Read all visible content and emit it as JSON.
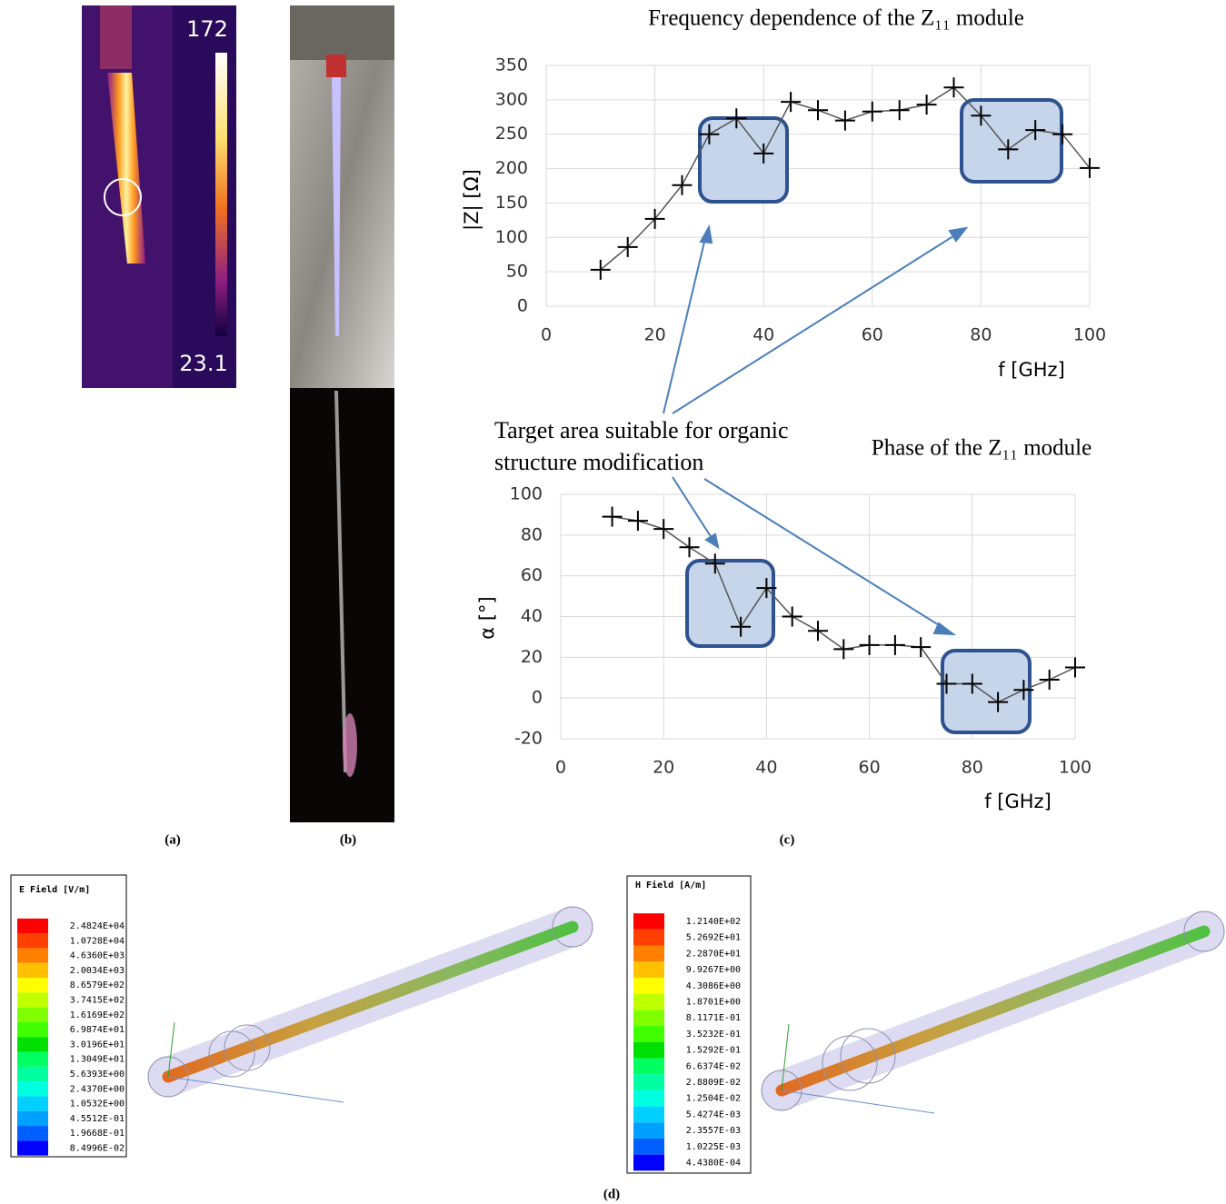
{
  "chart_data": [
    {
      "type": "line",
      "title": "Frequency dependence of the Z₁₁ module",
      "xlabel": "f  [GHz]",
      "ylabel": "|Z| [Ω]",
      "x": [
        10,
        15,
        20,
        25,
        30,
        35,
        40,
        45,
        50,
        55,
        60,
        65,
        70,
        75,
        80,
        85,
        90,
        95,
        100
      ],
      "values": [
        53,
        86,
        127,
        176,
        250,
        273,
        222,
        297,
        285,
        270,
        283,
        285,
        293,
        318,
        277,
        228,
        256,
        250,
        201
      ],
      "xlim": [
        0,
        100
      ],
      "ylim": [
        0,
        350
      ],
      "xticks": [
        0,
        20,
        40,
        60,
        80,
        100
      ],
      "yticks": [
        0,
        50,
        100,
        150,
        200,
        250,
        300,
        350
      ],
      "grid": true,
      "color": "#000000"
    },
    {
      "type": "line",
      "title": "Phase of the Z₁₁ module",
      "xlabel": "f  [GHz]",
      "ylabel": "α [°]",
      "x": [
        10,
        15,
        20,
        25,
        30,
        35,
        40,
        45,
        50,
        55,
        60,
        65,
        70,
        75,
        80,
        85,
        90,
        95,
        100
      ],
      "values": [
        89,
        87,
        83,
        74,
        66,
        35,
        54,
        40,
        33,
        24,
        26,
        26,
        25,
        7,
        7,
        -2,
        4,
        9,
        15
      ],
      "xlim": [
        0,
        100
      ],
      "ylim": [
        -20,
        100
      ],
      "xticks": [
        0,
        20,
        40,
        60,
        80,
        100
      ],
      "yticks": [
        -20,
        0,
        20,
        40,
        60,
        80,
        100
      ],
      "grid": true,
      "color": "#000000"
    }
  ],
  "annotation": [
    "Target area suitable for organic",
    "structure modification"
  ],
  "panels": [
    "(a)",
    "(b)",
    "(c)",
    "(d)"
  ],
  "thermal": {
    "max": "172",
    "min": "23.1"
  },
  "e_field": {
    "title": "E Field [V/m]",
    "levels": [
      "2.4824E+04",
      "1.0728E+04",
      "4.6360E+03",
      "2.0034E+03",
      "8.6579E+02",
      "3.7415E+02",
      "1.6169E+02",
      "6.9874E+01",
      "3.0196E+01",
      "1.3049E+01",
      "5.6393E+00",
      "2.4370E+00",
      "1.0532E+00",
      "4.5512E-01",
      "1.9668E-01",
      "8.4996E-02"
    ],
    "colors": [
      "#ff0000",
      "#ff4000",
      "#ff8000",
      "#ffc000",
      "#ffff00",
      "#c0ff00",
      "#80ff00",
      "#40ff00",
      "#00e000",
      "#00ff60",
      "#00ffa0",
      "#00ffe0",
      "#00d0ff",
      "#00a0ff",
      "#0060ff",
      "#0000ff"
    ]
  },
  "h_field": {
    "title": "H Field [A/m]",
    "levels": [
      "1.2140E+02",
      "5.2692E+01",
      "2.2870E+01",
      "9.9267E+00",
      "4.3086E+00",
      "1.8701E+00",
      "8.1171E-01",
      "3.5232E-01",
      "1.5292E-01",
      "6.6374E-02",
      "2.8809E-02",
      "1.2504E-02",
      "5.4274E-03",
      "2.3557E-03",
      "1.0225E-03",
      "4.4380E-04"
    ],
    "colors": [
      "#ff0000",
      "#ff4000",
      "#ff8000",
      "#ffc000",
      "#ffff00",
      "#c0ff00",
      "#80ff00",
      "#40ff00",
      "#00e000",
      "#00ff60",
      "#00ffa0",
      "#00ffe0",
      "#00d0ff",
      "#00a0ff",
      "#0060ff",
      "#0000ff"
    ]
  }
}
